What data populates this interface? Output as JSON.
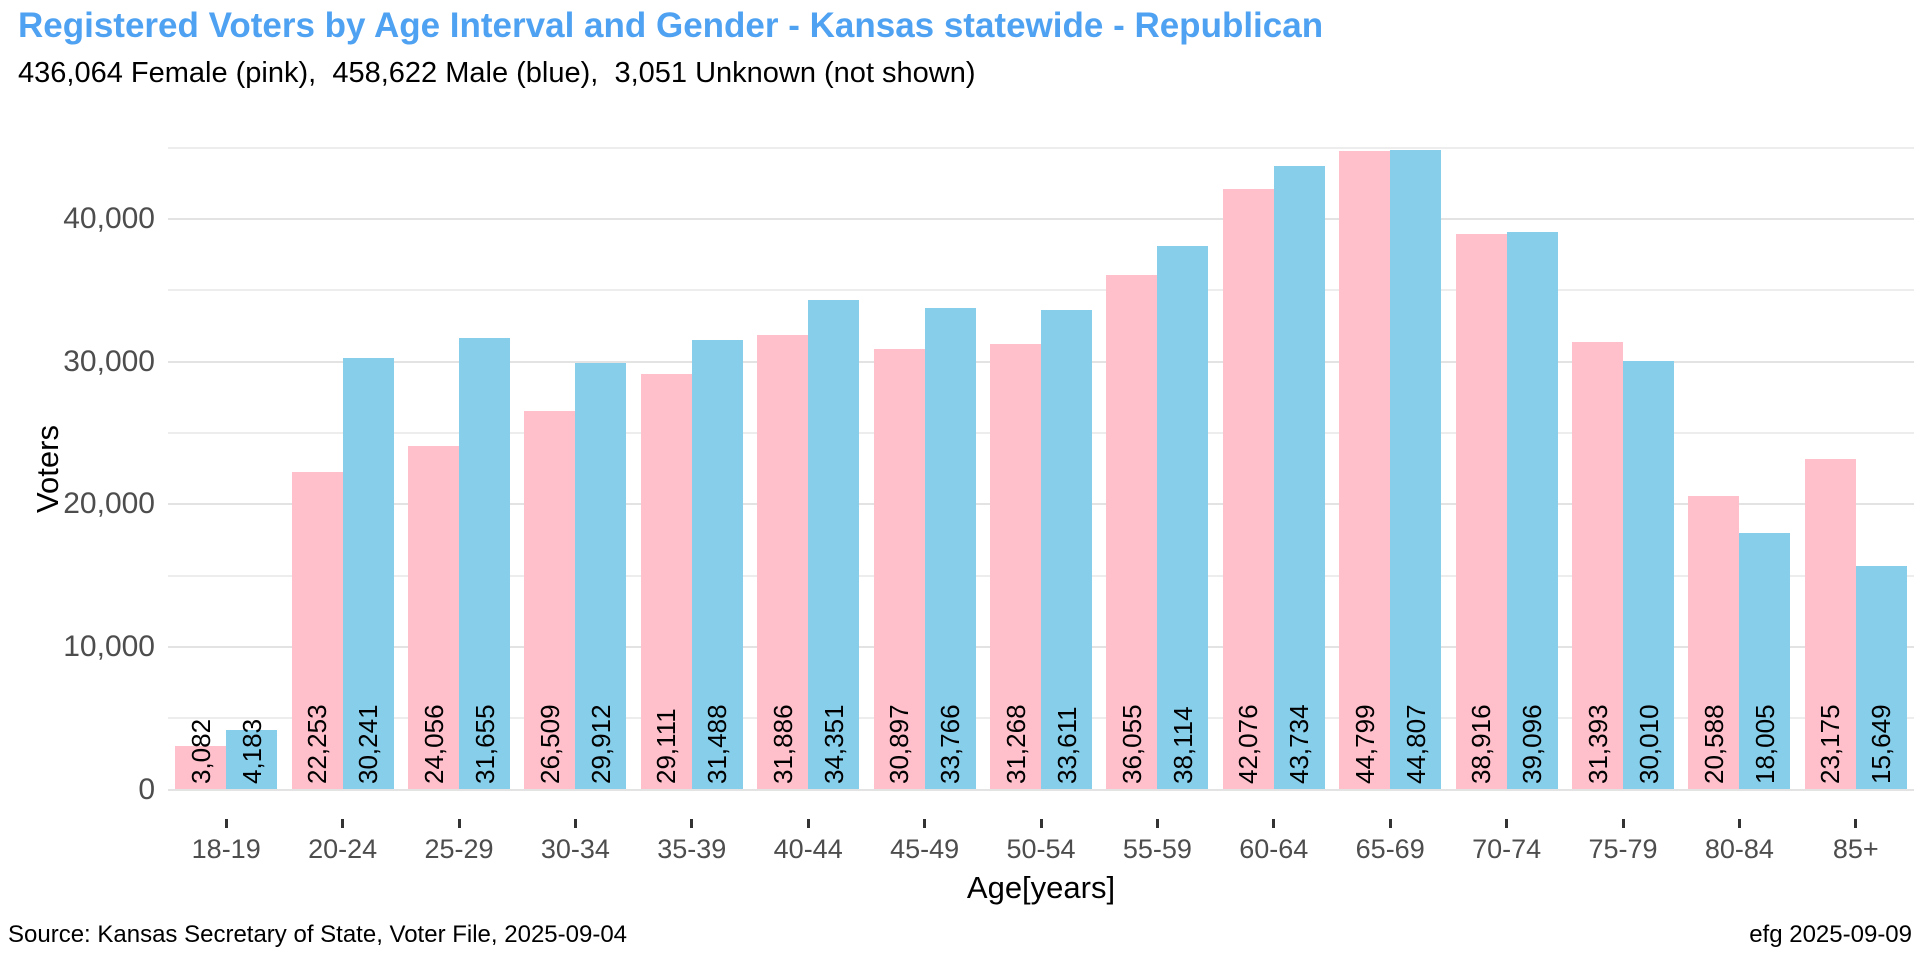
{
  "header": {
    "title": "Registered Voters by Age Interval and Gender - Kansas statewide - Republican",
    "subtitle": "436,064 Female (pink),  458,622 Male (blue),  3,051 Unknown (not shown)"
  },
  "footer": {
    "source": "Source: Kansas Secretary of State, Voter File, 2025-09-04",
    "credit": "efg 2025-09-09"
  },
  "colors": {
    "title": "#4FA2F2",
    "female_bar": "#FFC0CB",
    "male_bar": "#87CEEB",
    "grid_major": "#E3E3E3",
    "grid_minor": "#EDEDED",
    "axis_text": "#4D4D4D",
    "tick_mark": "#333333",
    "bar_label": "#000000"
  },
  "chart_data": {
    "type": "bar",
    "title": "Registered Voters by Age Interval and Gender - Kansas statewide - Republican",
    "subtitle": "436,064 Female (pink),  458,622 Male (blue),  3,051 Unknown (not shown)",
    "xlabel": "Age[years]",
    "ylabel": "Voters",
    "categories": [
      "18-19",
      "20-24",
      "25-29",
      "30-34",
      "35-39",
      "40-44",
      "45-49",
      "50-54",
      "55-59",
      "60-64",
      "65-69",
      "70-74",
      "75-79",
      "80-84",
      "85+"
    ],
    "series": [
      {
        "name": "Female",
        "color": "#FFC0CB",
        "values": [
          3082,
          22253,
          24056,
          26509,
          29111,
          31886,
          30897,
          31268,
          36055,
          42076,
          44799,
          38916,
          31393,
          20588,
          23175
        ],
        "total_label": "436,064"
      },
      {
        "name": "Male",
        "color": "#87CEEB",
        "values": [
          4183,
          30241,
          31655,
          29912,
          31488,
          34351,
          33766,
          33611,
          38114,
          43734,
          44807,
          39096,
          30010,
          18005,
          15649
        ],
        "total_label": "458,622"
      }
    ],
    "unknown_total_label": "3,051",
    "ylim": [
      0,
      47000
    ],
    "yticks": [
      {
        "v": 0,
        "label": "0"
      },
      {
        "v": 10000,
        "label": "10,000"
      },
      {
        "v": 20000,
        "label": "20,000"
      },
      {
        "v": 30000,
        "label": "30,000"
      },
      {
        "v": 40000,
        "label": "40,000"
      }
    ],
    "minor_gridlines": [
      5000,
      15000,
      25000,
      35000,
      45000
    ],
    "grid": true,
    "legend": "none",
    "bar_value_labels": "rotated 90deg, anchored at bar base, thousands-separated"
  }
}
